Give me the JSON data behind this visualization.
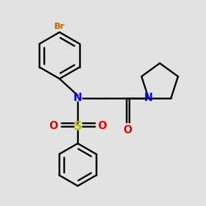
{
  "background_color": "#e2e2e2",
  "bond_color": "#000000",
  "bond_width": 1.8,
  "N_color": "#0000ee",
  "O_color": "#ee0000",
  "S_color": "#bbbb00",
  "Br_color": "#cc6600",
  "fig_size": [
    3.0,
    3.0
  ],
  "dpi": 100,
  "xlim": [
    0.0,
    1.0
  ],
  "ylim": [
    0.0,
    1.0
  ]
}
